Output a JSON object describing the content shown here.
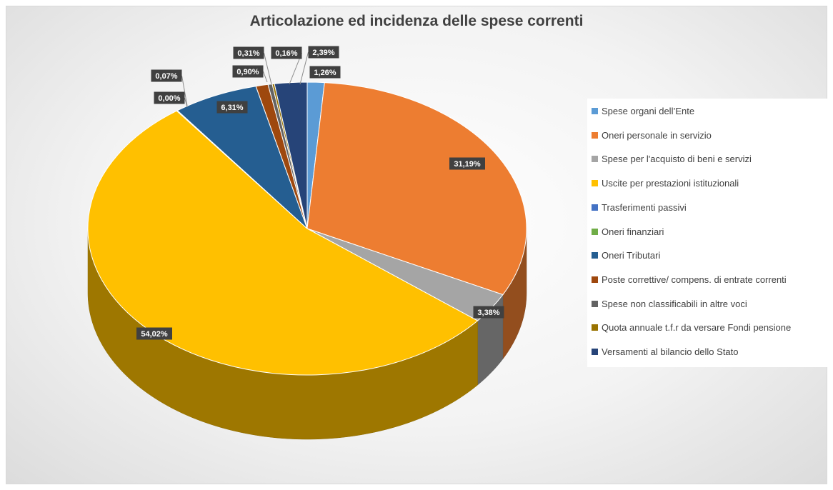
{
  "chart_data": {
    "type": "pie",
    "title": "Articolazione ed  incidenza delle spese correnti",
    "legend_position": "right",
    "slices": [
      {
        "name": "Spese organi dell’Ente",
        "value": 1.26,
        "label": "1,26%",
        "color": "#5B9BD5"
      },
      {
        "name": "Oneri personale in servizio",
        "value": 31.19,
        "label": "31,19%",
        "color": "#ED7D31"
      },
      {
        "name": "Spese per l'acquisto di  beni e servizi",
        "value": 3.38,
        "label": "3,38%",
        "color": "#A5A5A5"
      },
      {
        "name": "Uscite per prestazioni istituzionali",
        "value": 54.02,
        "label": "54,02%",
        "color": "#FFC000"
      },
      {
        "name": "Trasferimenti passivi",
        "value": 0.0,
        "label": "0,00%",
        "color": "#4472C4"
      },
      {
        "name": "Oneri finanziari",
        "value": 0.07,
        "label": "0,07%",
        "color": "#70AD47"
      },
      {
        "name": "Oneri Tributari",
        "value": 6.31,
        "label": "6,31%",
        "color": "#255E91"
      },
      {
        "name": "Poste correttive/ compens. di entrate correnti",
        "value": 0.9,
        "label": "0,90%",
        "color": "#9E480E"
      },
      {
        "name": "Spese non classificabili in altre voci",
        "value": 0.31,
        "label": "0,31%",
        "color": "#636363"
      },
      {
        "name": "Quota annuale t.f.r da versare Fondi pensione",
        "value": 0.16,
        "label": "0,16%",
        "color": "#997300"
      },
      {
        "name": "Versamenti al bilancio dello Stato",
        "value": 2.39,
        "label": "2,39%",
        "color": "#264478"
      }
    ]
  }
}
